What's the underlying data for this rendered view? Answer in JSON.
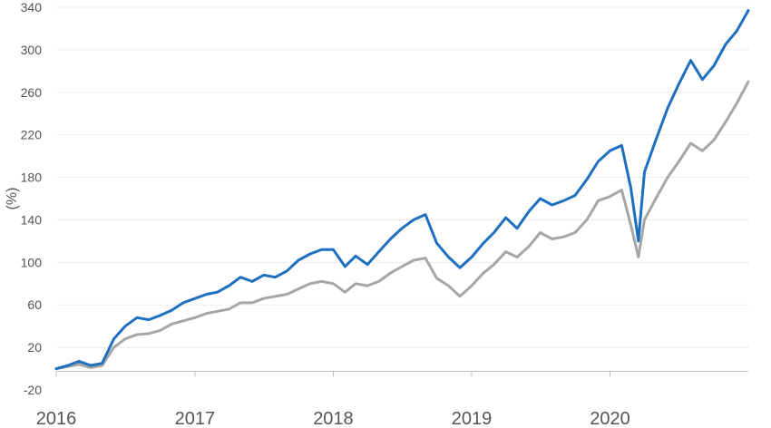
{
  "chart_data": {
    "type": "line",
    "title": "",
    "xlabel": "",
    "ylabel": "(%)",
    "ylim": [
      -20,
      340
    ],
    "xlim": [
      "2016-01-01",
      "2020-12-31"
    ],
    "yticks": [
      "340",
      "300",
      "260",
      "220",
      "180",
      "140",
      "100",
      "60",
      "20",
      "-20"
    ],
    "xticks": [
      {
        "date": "2016-01-01",
        "label": "2016"
      },
      {
        "date": "2017-01-01",
        "label": "2017"
      },
      {
        "date": "2018-01-01",
        "label": "2018"
      },
      {
        "date": "2019-01-01",
        "label": "2019"
      },
      {
        "date": "2020-01-01",
        "label": "2020"
      }
    ],
    "grid": "horizontal",
    "legend": "none",
    "series": [
      {
        "color": "#1f6fc0",
        "points": [
          [
            "2016-01-01",
            0
          ],
          [
            "2016-02-01",
            3
          ],
          [
            "2016-03-01",
            7
          ],
          [
            "2016-04-01",
            3
          ],
          [
            "2016-05-01",
            5
          ],
          [
            "2016-06-01",
            28
          ],
          [
            "2016-07-01",
            40
          ],
          [
            "2016-08-01",
            48
          ],
          [
            "2016-09-01",
            46
          ],
          [
            "2016-10-01",
            50
          ],
          [
            "2016-11-01",
            55
          ],
          [
            "2016-12-01",
            62
          ],
          [
            "2017-01-01",
            66
          ],
          [
            "2017-02-01",
            70
          ],
          [
            "2017-03-01",
            72
          ],
          [
            "2017-04-01",
            78
          ],
          [
            "2017-05-01",
            86
          ],
          [
            "2017-06-01",
            82
          ],
          [
            "2017-07-01",
            88
          ],
          [
            "2017-08-01",
            86
          ],
          [
            "2017-09-01",
            92
          ],
          [
            "2017-10-01",
            102
          ],
          [
            "2017-11-01",
            108
          ],
          [
            "2017-12-01",
            112
          ],
          [
            "2018-01-01",
            112
          ],
          [
            "2018-02-01",
            96
          ],
          [
            "2018-03-01",
            106
          ],
          [
            "2018-04-01",
            98
          ],
          [
            "2018-05-01",
            110
          ],
          [
            "2018-06-01",
            122
          ],
          [
            "2018-07-01",
            132
          ],
          [
            "2018-08-01",
            140
          ],
          [
            "2018-09-01",
            145
          ],
          [
            "2018-10-01",
            118
          ],
          [
            "2018-11-01",
            105
          ],
          [
            "2018-12-01",
            95
          ],
          [
            "2019-01-01",
            105
          ],
          [
            "2019-02-01",
            118
          ],
          [
            "2019-03-01",
            128
          ],
          [
            "2019-04-01",
            142
          ],
          [
            "2019-05-01",
            132
          ],
          [
            "2019-06-01",
            148
          ],
          [
            "2019-07-01",
            160
          ],
          [
            "2019-08-01",
            154
          ],
          [
            "2019-09-01",
            158
          ],
          [
            "2019-10-01",
            163
          ],
          [
            "2019-11-01",
            178
          ],
          [
            "2019-12-01",
            195
          ],
          [
            "2020-01-01",
            205
          ],
          [
            "2020-02-01",
            210
          ],
          [
            "2020-02-25",
            170
          ],
          [
            "2020-03-16",
            120
          ],
          [
            "2020-04-01",
            185
          ],
          [
            "2020-05-01",
            215
          ],
          [
            "2020-06-01",
            245
          ],
          [
            "2020-07-01",
            268
          ],
          [
            "2020-08-01",
            290
          ],
          [
            "2020-09-01",
            272
          ],
          [
            "2020-10-01",
            285
          ],
          [
            "2020-11-01",
            305
          ],
          [
            "2020-12-01",
            318
          ],
          [
            "2020-12-31",
            337
          ]
        ]
      },
      {
        "color": "#a6a6a6",
        "points": [
          [
            "2016-01-01",
            0
          ],
          [
            "2016-02-01",
            2
          ],
          [
            "2016-03-01",
            4
          ],
          [
            "2016-04-01",
            1
          ],
          [
            "2016-05-01",
            3
          ],
          [
            "2016-06-01",
            20
          ],
          [
            "2016-07-01",
            28
          ],
          [
            "2016-08-01",
            32
          ],
          [
            "2016-09-01",
            33
          ],
          [
            "2016-10-01",
            36
          ],
          [
            "2016-11-01",
            42
          ],
          [
            "2016-12-01",
            45
          ],
          [
            "2017-01-01",
            48
          ],
          [
            "2017-02-01",
            52
          ],
          [
            "2017-03-01",
            54
          ],
          [
            "2017-04-01",
            56
          ],
          [
            "2017-05-01",
            62
          ],
          [
            "2017-06-01",
            62
          ],
          [
            "2017-07-01",
            66
          ],
          [
            "2017-08-01",
            68
          ],
          [
            "2017-09-01",
            70
          ],
          [
            "2017-10-01",
            75
          ],
          [
            "2017-11-01",
            80
          ],
          [
            "2017-12-01",
            82
          ],
          [
            "2018-01-01",
            80
          ],
          [
            "2018-02-01",
            72
          ],
          [
            "2018-03-01",
            80
          ],
          [
            "2018-04-01",
            78
          ],
          [
            "2018-05-01",
            82
          ],
          [
            "2018-06-01",
            90
          ],
          [
            "2018-07-01",
            96
          ],
          [
            "2018-08-01",
            102
          ],
          [
            "2018-09-01",
            104
          ],
          [
            "2018-10-01",
            85
          ],
          [
            "2018-11-01",
            78
          ],
          [
            "2018-12-01",
            68
          ],
          [
            "2019-01-01",
            78
          ],
          [
            "2019-02-01",
            90
          ],
          [
            "2019-03-01",
            98
          ],
          [
            "2019-04-01",
            110
          ],
          [
            "2019-05-01",
            105
          ],
          [
            "2019-06-01",
            115
          ],
          [
            "2019-07-01",
            128
          ],
          [
            "2019-08-01",
            122
          ],
          [
            "2019-09-01",
            124
          ],
          [
            "2019-10-01",
            128
          ],
          [
            "2019-11-01",
            140
          ],
          [
            "2019-12-01",
            158
          ],
          [
            "2020-01-01",
            162
          ],
          [
            "2020-02-01",
            168
          ],
          [
            "2020-02-25",
            135
          ],
          [
            "2020-03-16",
            105
          ],
          [
            "2020-04-01",
            140
          ],
          [
            "2020-05-01",
            160
          ],
          [
            "2020-06-01",
            180
          ],
          [
            "2020-07-01",
            195
          ],
          [
            "2020-08-01",
            212
          ],
          [
            "2020-09-01",
            205
          ],
          [
            "2020-10-01",
            215
          ],
          [
            "2020-11-01",
            232
          ],
          [
            "2020-12-01",
            250
          ],
          [
            "2020-12-31",
            270
          ]
        ]
      }
    ]
  }
}
